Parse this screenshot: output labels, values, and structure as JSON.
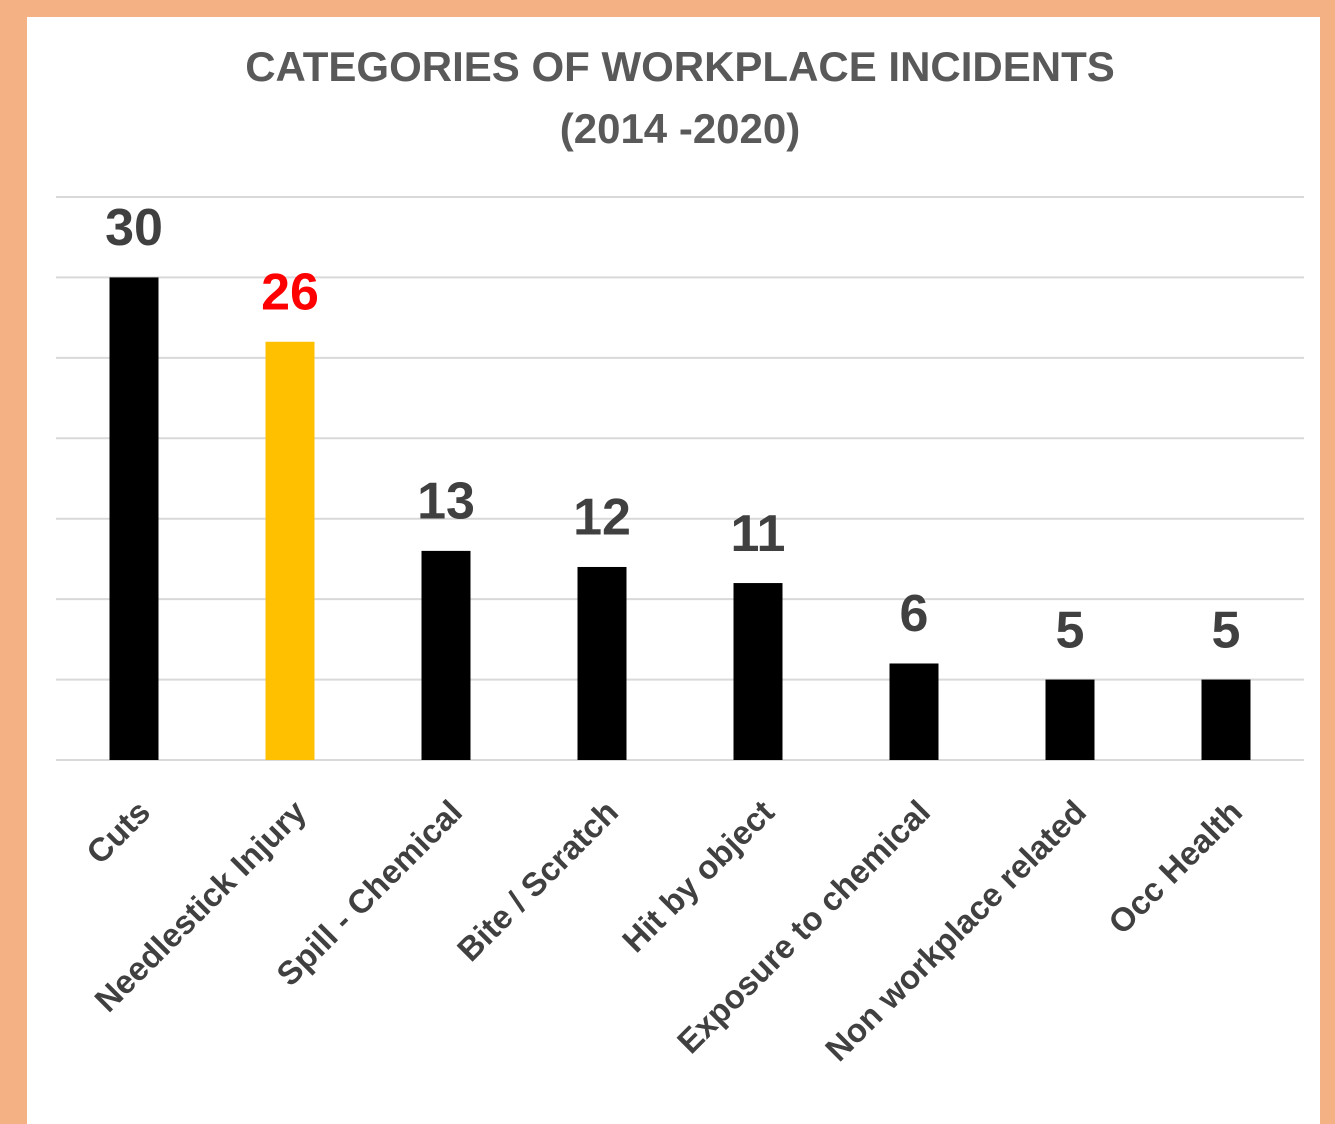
{
  "chart_data": {
    "type": "bar",
    "title": "CATEGORIES OF WORKPLACE INCIDENTS",
    "subtitle": "(2014 -2020)",
    "categories": [
      "Cuts",
      "Needlestick Injury",
      "Spill - Chemical",
      "Bite / Scratch",
      "Hit by object",
      "Exposure to chemical",
      "Non workplace related",
      "Occ Health"
    ],
    "values": [
      30,
      26,
      13,
      12,
      11,
      6,
      5,
      5
    ],
    "colors": [
      "#000000",
      "#ffc000",
      "#000000",
      "#000000",
      "#000000",
      "#000000",
      "#000000",
      "#000000"
    ],
    "label_colors": [
      "#404040",
      "#ff0000",
      "#404040",
      "#404040",
      "#404040",
      "#404040",
      "#404040",
      "#404040"
    ],
    "ylim": [
      0,
      35
    ],
    "yticks": [
      0,
      5,
      10,
      15,
      20,
      25,
      30,
      35
    ],
    "grid": true
  }
}
